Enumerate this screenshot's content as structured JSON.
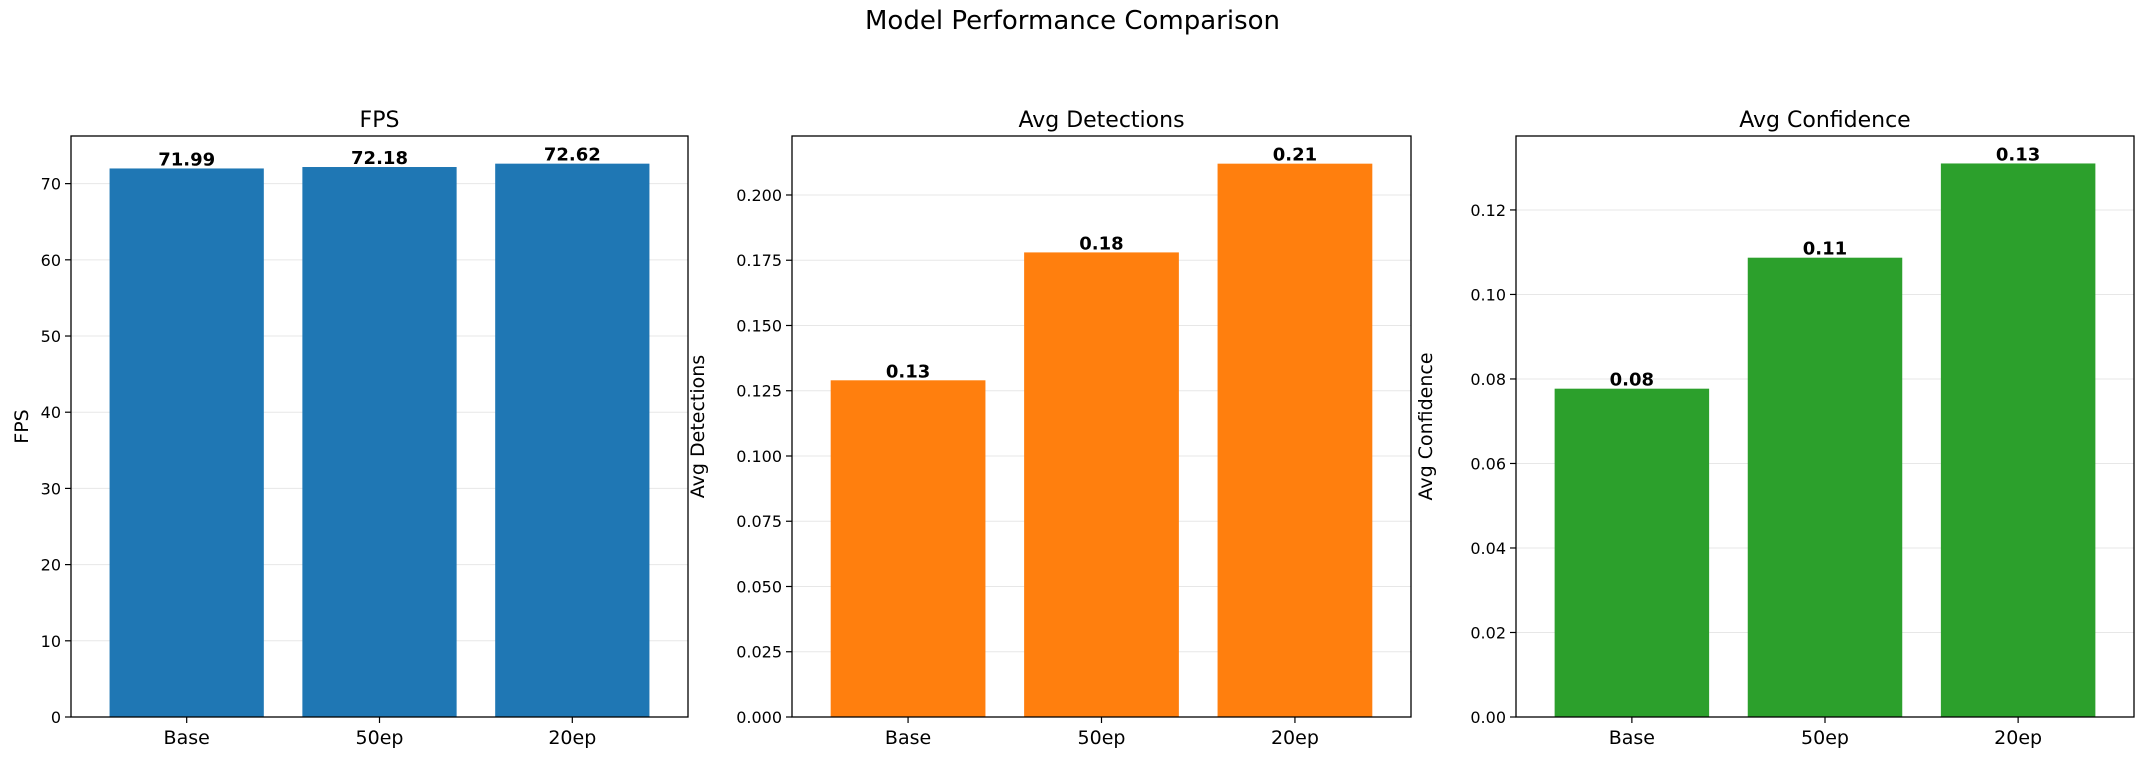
{
  "figure": {
    "title": "Model Performance Comparison"
  },
  "chart_data": [
    {
      "type": "bar",
      "title": "FPS",
      "xlabel": "",
      "ylabel": "FPS",
      "categories": [
        "Base",
        "50ep",
        "20ep"
      ],
      "values": [
        71.99,
        72.18,
        72.62
      ],
      "data_labels": [
        "71.99",
        "72.18",
        "72.62"
      ],
      "ylim": [
        0,
        76.25
      ],
      "yticks": [
        0,
        10,
        20,
        30,
        40,
        50,
        60,
        70
      ],
      "ytick_labels": [
        "0",
        "10",
        "20",
        "30",
        "40",
        "50",
        "60",
        "70"
      ],
      "color": "#1f77b4",
      "grid": "y"
    },
    {
      "type": "bar",
      "title": "Avg Detections",
      "xlabel": "",
      "ylabel": "Avg Detections",
      "categories": [
        "Base",
        "50ep",
        "20ep"
      ],
      "values": [
        0.129,
        0.178,
        0.212
      ],
      "data_labels": [
        "0.13",
        "0.18",
        "0.21"
      ],
      "ylim": [
        0,
        0.2226
      ],
      "yticks": [
        0,
        0.025,
        0.05,
        0.075,
        0.1,
        0.125,
        0.15,
        0.175,
        0.2
      ],
      "ytick_labels": [
        "0.000",
        "0.025",
        "0.050",
        "0.075",
        "0.100",
        "0.125",
        "0.150",
        "0.175",
        "0.200"
      ],
      "color": "#ff7f0e",
      "grid": "y"
    },
    {
      "type": "bar",
      "title": "Avg Confidence",
      "xlabel": "",
      "ylabel": "Avg Confidence",
      "categories": [
        "Base",
        "50ep",
        "20ep"
      ],
      "values": [
        0.0777,
        0.1087,
        0.131
      ],
      "data_labels": [
        "0.08",
        "0.11",
        "0.13"
      ],
      "ylim": [
        0,
        0.1375
      ],
      "yticks": [
        0,
        0.02,
        0.04,
        0.06,
        0.08,
        0.1,
        0.12
      ],
      "ytick_labels": [
        "0.00",
        "0.02",
        "0.04",
        "0.06",
        "0.08",
        "0.10",
        "0.12"
      ],
      "color": "#2ca02c",
      "grid": "y"
    }
  ]
}
